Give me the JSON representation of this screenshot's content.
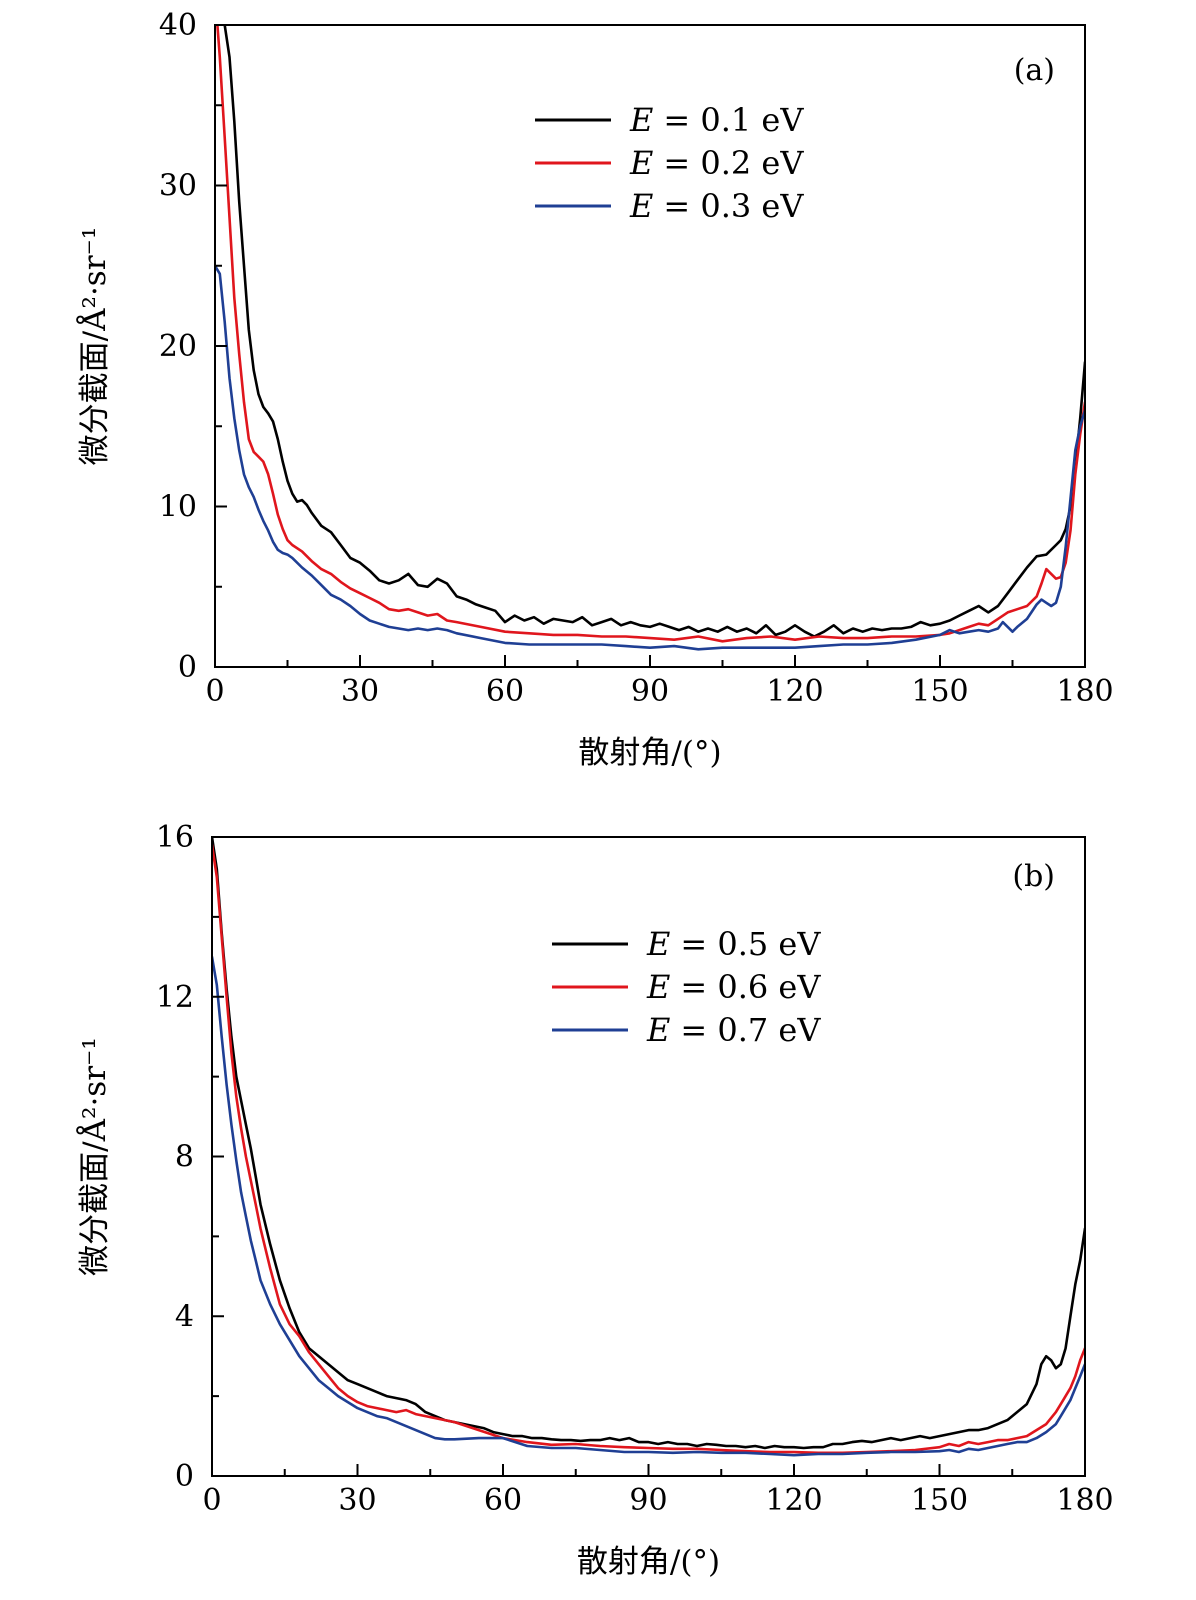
{
  "chart_data": [
    {
      "type": "line",
      "panel_label": "(a)",
      "xlabel": "散射角/(°)",
      "ylabel": "微分截面/Å²·sr⁻¹",
      "xlim": [
        0,
        180
      ],
      "ylim": [
        0,
        40
      ],
      "xticks": [
        0,
        30,
        60,
        90,
        120,
        150,
        180
      ],
      "yticks": [
        0,
        10,
        20,
        30,
        40
      ],
      "y_minor_step": 5,
      "x_minor_step": 15,
      "legend_position": "top-center",
      "series": [
        {
          "name": "E = 0.1 eV",
          "prefix": "E",
          "text": "= 0.1 eV",
          "color": "#000000",
          "x": [
            2,
            3,
            4,
            5,
            6,
            7,
            8,
            9,
            10,
            11,
            12,
            13,
            14,
            15,
            16,
            17,
            18,
            19,
            20,
            22,
            24,
            26,
            28,
            30,
            32,
            34,
            36,
            38,
            40,
            42,
            44,
            46,
            48,
            50,
            52,
            54,
            56,
            58,
            60,
            62,
            64,
            66,
            68,
            70,
            72,
            74,
            76,
            78,
            80,
            82,
            84,
            86,
            88,
            90,
            92,
            94,
            96,
            98,
            100,
            102,
            104,
            106,
            108,
            110,
            112,
            114,
            116,
            118,
            120,
            122,
            124,
            126,
            128,
            130,
            132,
            134,
            136,
            138,
            140,
            142,
            144,
            146,
            148,
            150,
            152,
            154,
            156,
            158,
            160,
            162,
            164,
            166,
            168,
            170,
            172,
            174,
            175,
            176,
            177,
            178,
            179,
            180
          ],
          "y": [
            40,
            38,
            34,
            29,
            25,
            21,
            18.5,
            17,
            16.2,
            15.8,
            15.3,
            14.2,
            12.8,
            11.6,
            10.8,
            10.3,
            10.4,
            10.1,
            9.6,
            8.8,
            8.4,
            7.6,
            6.8,
            6.5,
            6.0,
            5.4,
            5.2,
            5.4,
            5.8,
            5.1,
            5.0,
            5.5,
            5.2,
            4.4,
            4.2,
            3.9,
            3.7,
            3.5,
            2.8,
            3.2,
            2.9,
            3.1,
            2.7,
            3.0,
            2.9,
            2.8,
            3.1,
            2.6,
            2.8,
            3.0,
            2.6,
            2.8,
            2.6,
            2.5,
            2.7,
            2.5,
            2.3,
            2.5,
            2.2,
            2.4,
            2.2,
            2.5,
            2.2,
            2.4,
            2.1,
            2.6,
            2.0,
            2.2,
            2.6,
            2.2,
            1.9,
            2.2,
            2.6,
            2.1,
            2.4,
            2.2,
            2.4,
            2.3,
            2.4,
            2.4,
            2.5,
            2.8,
            2.6,
            2.7,
            2.9,
            3.2,
            3.5,
            3.8,
            3.4,
            3.8,
            4.6,
            5.4,
            6.2,
            6.9,
            7.0,
            7.6,
            7.9,
            8.6,
            10,
            12.5,
            15.5,
            19
          ]
        },
        {
          "name": "E = 0.2 eV",
          "prefix": "E",
          "text": "= 0.2 eV",
          "color": "#e0161d",
          "x": [
            0.5,
            1,
            2,
            3,
            4,
            5,
            6,
            7,
            8,
            9,
            10,
            11,
            12,
            13,
            14,
            15,
            16,
            18,
            20,
            22,
            24,
            26,
            28,
            30,
            32,
            34,
            36,
            38,
            40,
            42,
            44,
            46,
            48,
            50,
            55,
            60,
            65,
            70,
            75,
            80,
            85,
            90,
            95,
            100,
            105,
            110,
            115,
            120,
            125,
            130,
            135,
            140,
            145,
            150,
            152,
            154,
            156,
            158,
            160,
            162,
            164,
            166,
            168,
            170,
            171,
            172,
            173,
            174,
            175,
            176,
            177,
            178,
            179,
            180
          ],
          "y": [
            40,
            38,
            33,
            28,
            23,
            19.5,
            16.5,
            14.2,
            13.4,
            13.1,
            12.8,
            12.0,
            10.8,
            9.5,
            8.6,
            7.9,
            7.6,
            7.2,
            6.6,
            6.1,
            5.8,
            5.3,
            4.9,
            4.6,
            4.3,
            4.0,
            3.6,
            3.5,
            3.6,
            3.4,
            3.2,
            3.3,
            2.9,
            2.8,
            2.5,
            2.2,
            2.1,
            2.0,
            2.0,
            1.9,
            1.9,
            1.8,
            1.7,
            1.9,
            1.6,
            1.8,
            1.9,
            1.7,
            1.9,
            1.8,
            1.8,
            1.9,
            1.9,
            2.0,
            2.1,
            2.3,
            2.5,
            2.7,
            2.6,
            3.0,
            3.4,
            3.6,
            3.8,
            4.4,
            5.2,
            6.1,
            5.8,
            5.5,
            5.6,
            6.5,
            8.5,
            12,
            14.5,
            16.5
          ]
        },
        {
          "name": "E = 0.3 eV",
          "prefix": "E",
          "text": "= 0.3 eV",
          "color": "#1f3f94",
          "x": [
            0,
            1,
            2,
            3,
            4,
            5,
            6,
            7,
            8,
            9,
            10,
            11,
            12,
            13,
            14,
            15,
            16,
            18,
            20,
            22,
            24,
            26,
            28,
            30,
            32,
            34,
            36,
            38,
            40,
            42,
            44,
            46,
            48,
            50,
            55,
            60,
            65,
            70,
            75,
            80,
            85,
            90,
            95,
            100,
            105,
            110,
            115,
            120,
            125,
            130,
            135,
            140,
            145,
            150,
            152,
            154,
            156,
            158,
            160,
            162,
            163,
            164,
            165,
            166,
            168,
            170,
            171,
            172,
            173,
            174,
            175,
            176,
            177,
            178,
            179,
            180
          ],
          "y": [
            25,
            24.5,
            21.5,
            18,
            15.5,
            13.5,
            12,
            11.2,
            10.6,
            9.8,
            9.1,
            8.5,
            7.8,
            7.3,
            7.1,
            7.0,
            6.8,
            6.2,
            5.7,
            5.1,
            4.5,
            4.2,
            3.8,
            3.3,
            2.9,
            2.7,
            2.5,
            2.4,
            2.3,
            2.4,
            2.3,
            2.4,
            2.3,
            2.1,
            1.8,
            1.5,
            1.4,
            1.4,
            1.4,
            1.4,
            1.3,
            1.2,
            1.3,
            1.1,
            1.2,
            1.2,
            1.2,
            1.2,
            1.3,
            1.4,
            1.4,
            1.5,
            1.7,
            2.0,
            2.3,
            2.1,
            2.2,
            2.3,
            2.2,
            2.4,
            2.8,
            2.5,
            2.2,
            2.5,
            3.0,
            3.9,
            4.2,
            4.0,
            3.8,
            4.0,
            5.0,
            7.5,
            10.5,
            13.5,
            15,
            16
          ]
        }
      ]
    },
    {
      "type": "line",
      "panel_label": "(b)",
      "xlabel": "散射角/(°)",
      "ylabel": "微分截面/Å²·sr⁻¹",
      "xlim": [
        0,
        180
      ],
      "ylim": [
        0,
        16
      ],
      "xticks": [
        0,
        30,
        60,
        90,
        120,
        150,
        180
      ],
      "yticks": [
        0,
        4,
        8,
        12,
        16
      ],
      "y_minor_step": 2,
      "x_minor_step": 15,
      "legend_position": "top-center",
      "series": [
        {
          "name": "E = 0.5 eV",
          "prefix": "E",
          "text": "= 0.5 eV",
          "color": "#000000",
          "x": [
            0,
            1,
            2,
            3,
            4,
            5,
            6,
            7,
            8,
            9,
            10,
            12,
            14,
            16,
            18,
            20,
            22,
            24,
            26,
            28,
            30,
            32,
            34,
            36,
            38,
            40,
            42,
            44,
            46,
            48,
            50,
            52,
            54,
            56,
            58,
            60,
            62,
            64,
            66,
            68,
            70,
            72,
            74,
            76,
            78,
            80,
            82,
            84,
            86,
            88,
            90,
            92,
            94,
            96,
            98,
            100,
            102,
            104,
            106,
            108,
            110,
            112,
            114,
            116,
            118,
            120,
            122,
            124,
            126,
            128,
            130,
            132,
            134,
            136,
            138,
            140,
            142,
            144,
            146,
            148,
            150,
            152,
            154,
            156,
            158,
            160,
            162,
            164,
            166,
            168,
            170,
            171,
            172,
            173,
            174,
            175,
            176,
            177,
            178,
            179,
            180
          ],
          "y": [
            16,
            15.2,
            13.6,
            12.2,
            11.0,
            10.0,
            9.4,
            8.8,
            8.2,
            7.5,
            6.8,
            5.8,
            4.9,
            4.2,
            3.6,
            3.2,
            3.0,
            2.8,
            2.6,
            2.4,
            2.3,
            2.2,
            2.1,
            2.0,
            1.95,
            1.9,
            1.8,
            1.6,
            1.5,
            1.4,
            1.35,
            1.3,
            1.25,
            1.2,
            1.1,
            1.05,
            1.0,
            1.0,
            0.95,
            0.95,
            0.92,
            0.9,
            0.9,
            0.88,
            0.9,
            0.9,
            0.95,
            0.9,
            0.95,
            0.85,
            0.85,
            0.8,
            0.85,
            0.8,
            0.8,
            0.75,
            0.8,
            0.78,
            0.75,
            0.75,
            0.72,
            0.75,
            0.7,
            0.75,
            0.72,
            0.72,
            0.7,
            0.72,
            0.72,
            0.8,
            0.8,
            0.85,
            0.88,
            0.85,
            0.9,
            0.95,
            0.9,
            0.95,
            1.0,
            0.95,
            1.0,
            1.05,
            1.1,
            1.15,
            1.15,
            1.2,
            1.3,
            1.4,
            1.6,
            1.8,
            2.3,
            2.8,
            3.0,
            2.9,
            2.7,
            2.8,
            3.2,
            4.0,
            4.8,
            5.4,
            6.2
          ]
        },
        {
          "name": "E = 0.6 eV",
          "prefix": "E",
          "text": "= 0.6 eV",
          "color": "#e0161d",
          "x": [
            0,
            1,
            2,
            3,
            4,
            5,
            6,
            7,
            8,
            9,
            10,
            12,
            14,
            16,
            18,
            20,
            22,
            24,
            26,
            28,
            30,
            32,
            34,
            36,
            38,
            40,
            42,
            44,
            46,
            48,
            50,
            55,
            60,
            65,
            70,
            75,
            80,
            85,
            90,
            95,
            100,
            105,
            110,
            115,
            120,
            125,
            130,
            135,
            140,
            145,
            150,
            152,
            154,
            156,
            158,
            160,
            162,
            164,
            166,
            168,
            170,
            172,
            174,
            175,
            176,
            177,
            178,
            179,
            180
          ],
          "y": [
            15.8,
            15.0,
            13.5,
            12.0,
            10.6,
            9.5,
            8.7,
            8.0,
            7.4,
            6.8,
            6.2,
            5.2,
            4.3,
            3.8,
            3.5,
            3.1,
            2.8,
            2.5,
            2.2,
            2.0,
            1.85,
            1.75,
            1.7,
            1.65,
            1.6,
            1.65,
            1.55,
            1.5,
            1.45,
            1.4,
            1.35,
            1.15,
            0.95,
            0.85,
            0.78,
            0.8,
            0.75,
            0.72,
            0.7,
            0.68,
            0.68,
            0.65,
            0.62,
            0.6,
            0.6,
            0.58,
            0.58,
            0.6,
            0.62,
            0.65,
            0.72,
            0.8,
            0.75,
            0.85,
            0.8,
            0.85,
            0.9,
            0.9,
            0.95,
            1.0,
            1.15,
            1.3,
            1.6,
            1.8,
            2.0,
            2.2,
            2.5,
            2.9,
            3.2
          ]
        },
        {
          "name": "E = 0.7 eV",
          "prefix": "E",
          "text": "= 0.7 eV",
          "color": "#1f3f94",
          "x": [
            0,
            1,
            2,
            3,
            4,
            5,
            6,
            7,
            8,
            9,
            10,
            12,
            14,
            16,
            18,
            20,
            22,
            24,
            26,
            28,
            30,
            32,
            34,
            36,
            38,
            40,
            42,
            44,
            46,
            48,
            50,
            55,
            60,
            65,
            70,
            75,
            80,
            85,
            90,
            95,
            100,
            105,
            110,
            115,
            120,
            125,
            130,
            135,
            140,
            145,
            150,
            152,
            154,
            156,
            158,
            160,
            162,
            164,
            166,
            168,
            170,
            172,
            174,
            175,
            176,
            177,
            178,
            179,
            180
          ],
          "y": [
            13.0,
            12.3,
            11.0,
            9.8,
            8.8,
            7.9,
            7.1,
            6.5,
            5.9,
            5.4,
            4.9,
            4.3,
            3.8,
            3.4,
            3.0,
            2.7,
            2.4,
            2.2,
            2.0,
            1.85,
            1.7,
            1.6,
            1.5,
            1.45,
            1.35,
            1.25,
            1.15,
            1.05,
            0.95,
            0.92,
            0.92,
            0.95,
            0.95,
            0.75,
            0.7,
            0.7,
            0.65,
            0.6,
            0.6,
            0.58,
            0.6,
            0.58,
            0.58,
            0.55,
            0.52,
            0.55,
            0.55,
            0.58,
            0.6,
            0.6,
            0.62,
            0.65,
            0.6,
            0.68,
            0.65,
            0.7,
            0.75,
            0.8,
            0.85,
            0.85,
            0.95,
            1.1,
            1.3,
            1.5,
            1.7,
            1.9,
            2.2,
            2.5,
            2.8
          ]
        }
      ]
    }
  ]
}
